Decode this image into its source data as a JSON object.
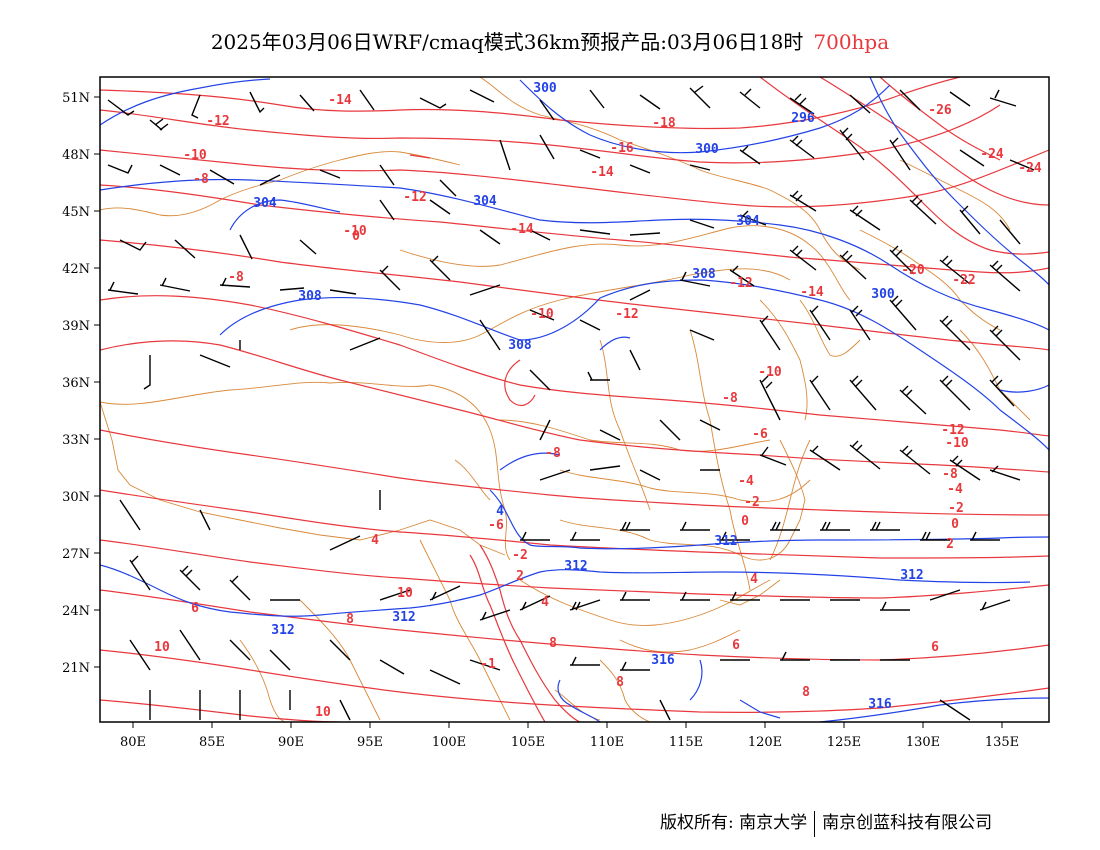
{
  "title": {
    "main": "2025年03月06日WRF/cmaq模式36km预报产品:03月06日18时",
    "level": "700hpa"
  },
  "axes": {
    "lon_labels": [
      "80E",
      "85E",
      "90E",
      "95E",
      "100E",
      "105E",
      "110E",
      "115E",
      "120E",
      "125E",
      "130E",
      "135E"
    ],
    "lat_labels": [
      "51N",
      "48N",
      "45N",
      "42N",
      "39N",
      "36N",
      "33N",
      "30N",
      "27N",
      "24N",
      "21N"
    ]
  },
  "colors": {
    "temperature_contour": "#e8383d",
    "height_contour": "#2343e6",
    "border": "#d9893a",
    "wind_barb": "#000000"
  },
  "height_labels": [
    {
      "text": "300"
    },
    {
      "text": "296"
    },
    {
      "text": "300"
    },
    {
      "text": "304"
    },
    {
      "text": "304"
    },
    {
      "text": "304"
    },
    {
      "text": "308"
    },
    {
      "text": "300"
    },
    {
      "text": "308"
    },
    {
      "text": "308"
    },
    {
      "text": "312"
    },
    {
      "text": "312"
    },
    {
      "text": "312"
    },
    {
      "text": "312"
    },
    {
      "text": "316"
    },
    {
      "text": "316"
    },
    {
      "text": "312"
    },
    {
      "text": "4"
    }
  ],
  "temp_labels": [
    {
      "text": "-14"
    },
    {
      "text": "-12"
    },
    {
      "text": "-10"
    },
    {
      "text": "-8"
    },
    {
      "text": "-18"
    },
    {
      "text": "-16"
    },
    {
      "text": "-14"
    },
    {
      "text": "-12"
    },
    {
      "text": "-10"
    },
    {
      "text": "-14"
    },
    {
      "text": "-26"
    },
    {
      "text": "-24"
    },
    {
      "text": "-24"
    },
    {
      "text": "-20"
    },
    {
      "text": "-22"
    },
    {
      "text": "-12"
    },
    {
      "text": "-14"
    },
    {
      "text": "-12"
    },
    {
      "text": "-10"
    },
    {
      "text": "-8"
    },
    {
      "text": "-10"
    },
    {
      "text": "-8"
    },
    {
      "text": "-6"
    },
    {
      "text": "-8"
    },
    {
      "text": "-12"
    },
    {
      "text": "-10"
    },
    {
      "text": "-8"
    },
    {
      "text": "-4"
    },
    {
      "text": "-4"
    },
    {
      "text": "-2"
    },
    {
      "text": "-2"
    },
    {
      "text": "0"
    },
    {
      "text": "0"
    },
    {
      "text": "2"
    },
    {
      "text": "-6"
    },
    {
      "text": "-2"
    },
    {
      "text": "2"
    },
    {
      "text": "4"
    },
    {
      "text": "4"
    },
    {
      "text": "4"
    },
    {
      "text": "6"
    },
    {
      "text": "6"
    },
    {
      "text": "6"
    },
    {
      "text": "8"
    },
    {
      "text": "8"
    },
    {
      "text": "8"
    },
    {
      "text": "8"
    },
    {
      "text": "10"
    },
    {
      "text": "10"
    },
    {
      "text": "10"
    },
    {
      "text": "0"
    },
    {
      "text": "-1"
    }
  ],
  "footer": {
    "copyright": "版权所有: 南京大学",
    "company": "南京创蓝科技有限公司"
  }
}
